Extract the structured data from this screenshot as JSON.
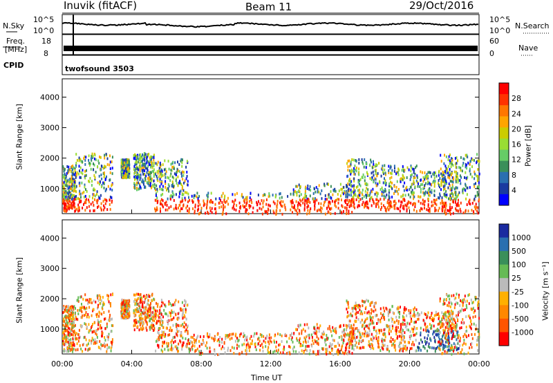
{
  "header": {
    "station": "Inuvik (fitACF)",
    "beam": "Beam 11",
    "date": "29/Oct/2016"
  },
  "top_panels": {
    "nsky_label": "N.Sky",
    "nsky_ticks": [
      "10^5",
      "10^0"
    ],
    "nsearch_label": "N.Search",
    "nsearch_ticks": [
      "10^5",
      "10^0"
    ],
    "freq_label_1": "Freq.",
    "freq_label_2": "[MHz]",
    "freq_ticks": [
      "18",
      "8"
    ],
    "nave_label": "Nave",
    "nave_ticks": [
      "60",
      "0"
    ],
    "cpid_label": "CPID",
    "cpid_value": "twofsound 3503"
  },
  "chart_data": [
    {
      "type": "heatmap",
      "name": "power",
      "ylabel": "Slant Range [km]",
      "xlabel": "",
      "yticks": [
        "1000",
        "2000",
        "3000",
        "4000"
      ],
      "ylim": [
        180,
        4600
      ],
      "colorbar_label": "Power [dB]",
      "colorbar_ticks": [
        "28",
        "24",
        "20",
        "16",
        "12",
        "8",
        "4"
      ],
      "colorbar_colors": [
        "#ff0000",
        "#ff3300",
        "#ff7700",
        "#ffa500",
        "#cccc00",
        "#99dd33",
        "#66cc66",
        "#3a8f5a",
        "#2a6fb0",
        "#1a3aa0",
        "#0000ff"
      ]
    },
    {
      "type": "heatmap",
      "name": "velocity",
      "ylabel": "Slant Range [km]",
      "xlabel": "Time UT",
      "yticks": [
        "1000",
        "2000",
        "3000",
        "4000"
      ],
      "ylim": [
        180,
        4600
      ],
      "colorbar_label": "Velocity [m s⁻¹]",
      "colorbar_ticks": [
        "1000",
        "500",
        "100",
        "25",
        "-25",
        "-100",
        "-500",
        "-1000"
      ],
      "colorbar_colors": [
        "#1a2aa0",
        "#2a6fb0",
        "#3a8f5a",
        "#66bb55",
        "#bbbbbb",
        "#ffb000",
        "#ff8800",
        "#ff5500",
        "#ff0000"
      ]
    }
  ],
  "x_ticks": [
    "00:00",
    "04:00",
    "08:00",
    "12:00",
    "16:00",
    "20:00",
    "00:00"
  ],
  "x_axis_label": "Time UT"
}
